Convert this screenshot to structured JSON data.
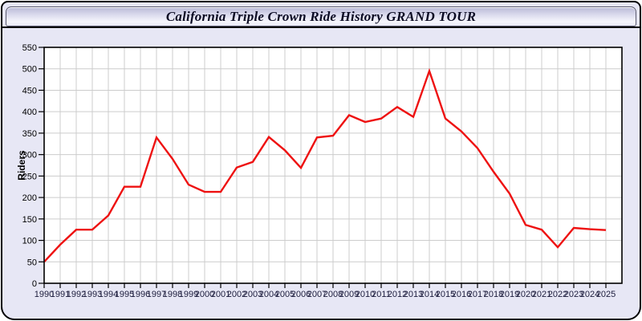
{
  "window": {
    "title": "California Triple Crown Ride History GRAND TOUR"
  },
  "colors": {
    "line": "#ee1111",
    "page_background": "#e7e7f5",
    "plot_background": "#ffffff",
    "grid": "#cccccc",
    "axis": "#000000",
    "x_tick_label": "#1c1c3c",
    "y_tick_label": "#000000",
    "title_text": "#0a0a23"
  },
  "chart_data": {
    "type": "line",
    "title": "California Triple Crown Ride History GRAND TOUR",
    "xlabel": "",
    "ylabel": "Riders",
    "ylim": [
      0,
      550
    ],
    "ytick_step": 50,
    "yticks": [
      0,
      50,
      100,
      150,
      200,
      250,
      300,
      350,
      400,
      450,
      500,
      550
    ],
    "grid": true,
    "legend_position": "none",
    "categories": [
      "1990",
      "1991",
      "1992",
      "1993",
      "1994",
      "1995",
      "1996",
      "1997",
      "1998",
      "1999",
      "2000",
      "2001",
      "2002",
      "2003",
      "2004",
      "2005",
      "2006",
      "2007",
      "2008",
      "2009",
      "2010",
      "2011",
      "2012",
      "2013",
      "2014",
      "2015",
      "2016",
      "2017",
      "2018",
      "2019",
      "2020",
      "2021",
      "2022",
      "2023",
      "2024",
      "2025"
    ],
    "series": [
      {
        "name": "Riders",
        "color": "#ee1111",
        "values": [
          50,
          90,
          125,
          125,
          158,
          225,
          225,
          340,
          290,
          230,
          213,
          213,
          270,
          283,
          341,
          310,
          269,
          340,
          344,
          392,
          376,
          384,
          411,
          388,
          495,
          384,
          354,
          315,
          260,
          209,
          136,
          125,
          84,
          129,
          126,
          124
        ]
      }
    ]
  }
}
